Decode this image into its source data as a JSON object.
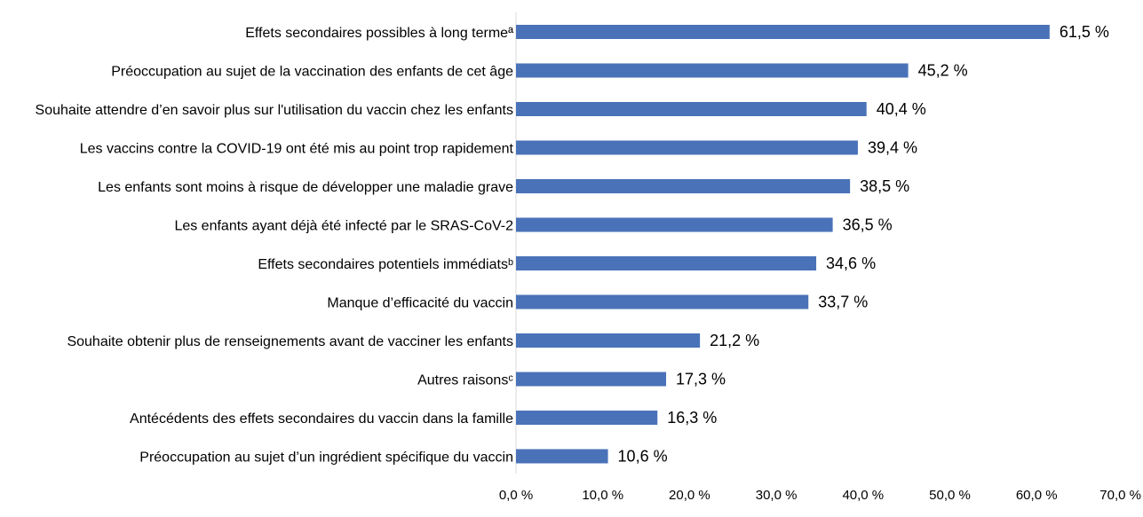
{
  "chart_data": {
    "type": "bar",
    "orientation": "horizontal",
    "title": "",
    "xlabel": "",
    "ylabel": "",
    "xlim": [
      0,
      70
    ],
    "grid": false,
    "bar_color": "#4a72b8",
    "categories": [
      "Effets secondaires possibles à long termeª",
      "Préoccupation au sujet de la vaccination des enfants de cet âge",
      "Souhaite attendre d’en savoir plus sur l'utilisation du vaccin chez les enfants",
      "Les vaccins contre la COVID-19 ont été mis au point trop rapidement",
      "Les enfants sont moins à risque de développer une maladie grave",
      "Les enfants ayant déjà été infecté par le SRAS-CoV-2",
      "Effets secondaires potentiels immédiatsᵇ",
      "Manque d’efficacité du vaccin",
      "Souhaite obtenir plus de renseignements avant de vacciner les enfants",
      "Autres raisonsᶜ",
      "Antécédents des effets secondaires du vaccin dans la famille",
      "Préoccupation au sujet d’un ingrédient spécifique du vaccin"
    ],
    "values": [
      61.5,
      45.2,
      40.4,
      39.4,
      38.5,
      36.5,
      34.6,
      33.7,
      21.2,
      17.3,
      16.3,
      10.6
    ],
    "value_labels": [
      "61,5 %",
      "45,2 %",
      "40,4 %",
      "39,4 %",
      "38,5 %",
      "36,5 %",
      "34,6 %",
      "33,7 %",
      "21,2 %",
      "17,3 %",
      "16,3 %",
      "10,6 %"
    ],
    "ticks": [
      0,
      10,
      20,
      30,
      40,
      50,
      60,
      70
    ],
    "tick_labels": [
      "0,0 %",
      "10,0 %",
      "20,0 %",
      "30,0 %",
      "40,0 %",
      "50,0 %",
      "60,0 %",
      "70,0 %"
    ]
  }
}
